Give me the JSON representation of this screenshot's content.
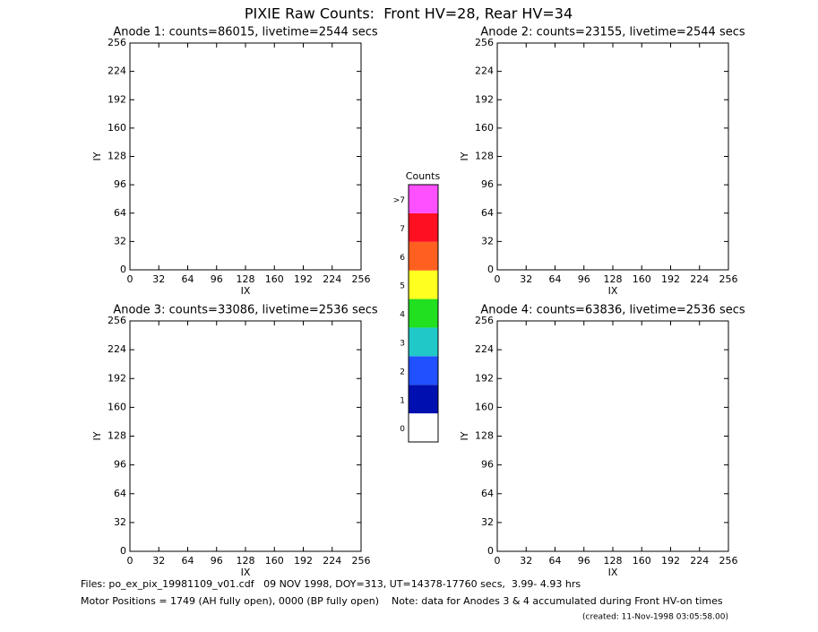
{
  "title": "PIXIE Raw Counts:  Front HV=28, Rear HV=34",
  "chart_data": [
    {
      "type": "heatmap",
      "title": "Anode 1: counts=86015, livetime=2544 secs",
      "xlabel": "IX",
      "ylabel": "IY",
      "xlim": [
        0,
        256
      ],
      "ylim": [
        0,
        256
      ],
      "xticks": [
        0,
        32,
        64,
        96,
        128,
        160,
        192,
        224,
        256
      ],
      "yticks": [
        0,
        32,
        64,
        96,
        128,
        160,
        192,
        224,
        256
      ]
    },
    {
      "type": "heatmap",
      "title": "Anode 2: counts=23155, livetime=2544 secs",
      "xlabel": "IX",
      "ylabel": "IY",
      "xlim": [
        0,
        256
      ],
      "ylim": [
        0,
        256
      ],
      "xticks": [
        0,
        32,
        64,
        96,
        128,
        160,
        192,
        224,
        256
      ],
      "yticks": [
        0,
        32,
        64,
        96,
        128,
        160,
        192,
        224,
        256
      ]
    },
    {
      "type": "heatmap",
      "title": "Anode 3: counts=33086, livetime=2536 secs",
      "xlabel": "IX",
      "ylabel": "IY",
      "xlim": [
        0,
        256
      ],
      "ylim": [
        0,
        256
      ],
      "xticks": [
        0,
        32,
        64,
        96,
        128,
        160,
        192,
        224,
        256
      ],
      "yticks": [
        0,
        32,
        64,
        96,
        128,
        160,
        192,
        224,
        256
      ]
    },
    {
      "type": "heatmap",
      "title": "Anode 4: counts=63836, livetime=2536 secs",
      "xlabel": "IX",
      "ylabel": "IY",
      "xlim": [
        0,
        256
      ],
      "ylim": [
        0,
        256
      ],
      "xticks": [
        0,
        32,
        64,
        96,
        128,
        160,
        192,
        224,
        256
      ],
      "yticks": [
        0,
        32,
        64,
        96,
        128,
        160,
        192,
        224,
        256
      ]
    }
  ],
  "colorbar": {
    "title": "Counts",
    "levels": [
      {
        "label": "0",
        "color": "#ffffff"
      },
      {
        "label": "1",
        "color": "#0010b0"
      },
      {
        "label": "2",
        "color": "#2050ff"
      },
      {
        "label": "3",
        "color": "#20c8c8"
      },
      {
        "label": "4",
        "color": "#20e020"
      },
      {
        "label": "5",
        "color": "#ffff20"
      },
      {
        "label": "6",
        "color": "#ff6020"
      },
      {
        "label": "7",
        "color": "#ff1020"
      },
      {
        "label": ">7",
        "color": "#ff50ff"
      }
    ]
  },
  "footer": [
    "Files: po_ex_pix_19981109_v01.cdf   09 NOV 1998, DOY=313, UT=14378-17760 secs,  3.99- 4.93 hrs",
    "Motor Positions = 1749 (AH fully open), 0000 (BP fully open)    Note: data for Anodes 3 & 4 accumulated during Front HV-on times",
    "(created: 11-Nov-1998 03:05:58.00)"
  ]
}
